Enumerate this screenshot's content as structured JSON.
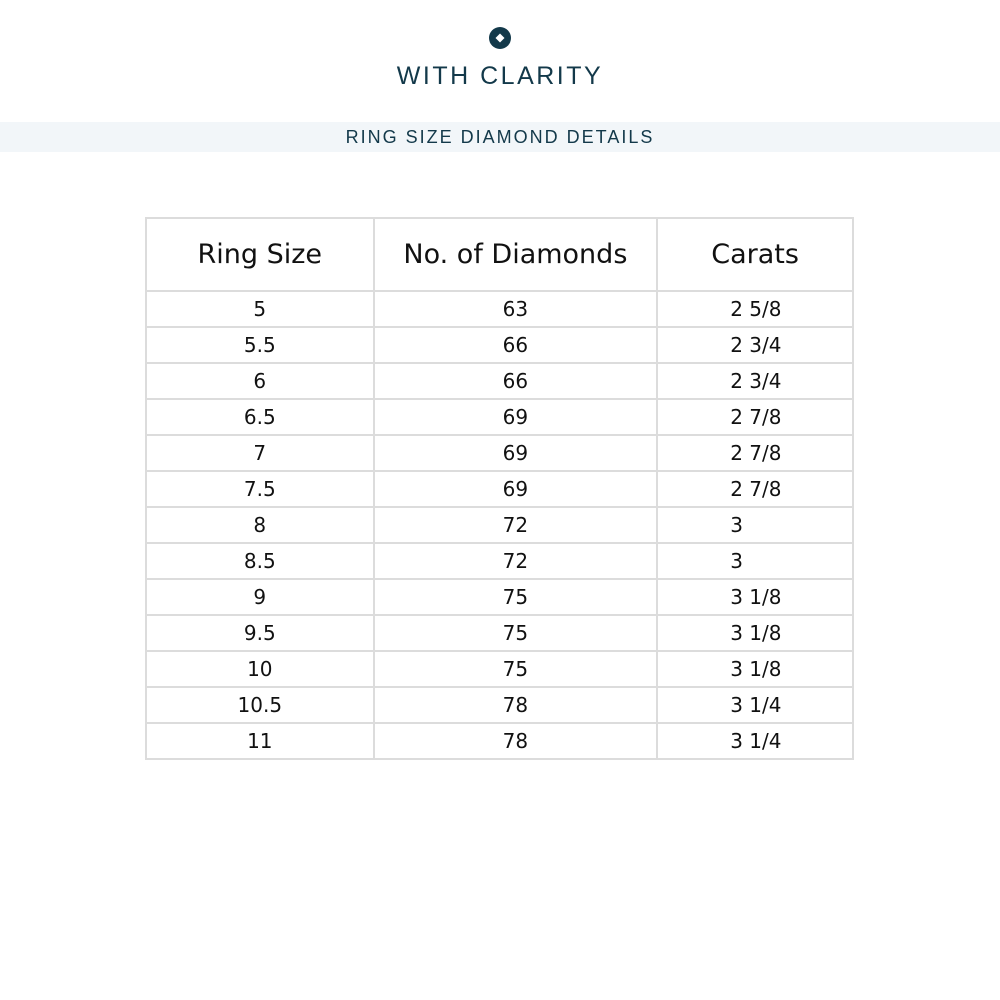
{
  "header": {
    "brand": "WITH CLARITY",
    "logo_icon": "diamond-circle-icon",
    "brand_color": "#13394a",
    "banner": "RING SIZE DIAMOND DETAILS"
  },
  "table": {
    "columns": [
      "Ring Size",
      "No. of Diamonds",
      "Carats"
    ],
    "rows": [
      [
        "5",
        "63",
        "2 5/8"
      ],
      [
        "5.5",
        "66",
        "2 3/4"
      ],
      [
        "6",
        "66",
        "2 3/4"
      ],
      [
        "6.5",
        "69",
        "2 7/8"
      ],
      [
        "7",
        "69",
        "2 7/8"
      ],
      [
        "7.5",
        "69",
        "2 7/8"
      ],
      [
        "8",
        "72",
        "3"
      ],
      [
        "8.5",
        "72",
        "3"
      ],
      [
        "9",
        "75",
        "3 1/8"
      ],
      [
        "9.5",
        "75",
        "3 1/8"
      ],
      [
        "10",
        "75",
        "3 1/8"
      ],
      [
        "10.5",
        "78",
        "3 1/4"
      ],
      [
        "11",
        "78",
        "3 1/4"
      ]
    ]
  }
}
